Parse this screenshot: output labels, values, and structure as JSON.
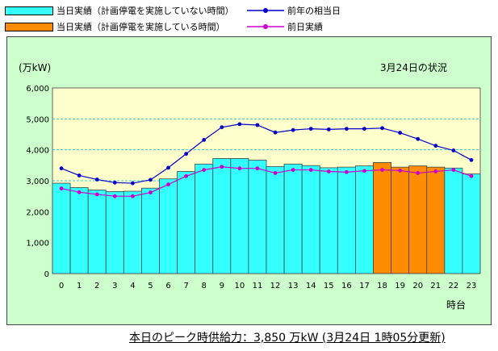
{
  "legend": {
    "today_no_outage": "当日実績（計画停電を実施していない時間）",
    "today_outage": "当日実績（計画停電を実施している時間）",
    "last_year": "前年の相当日",
    "previous_day": "前日実績"
  },
  "header": {
    "unit_label": "(万kW)",
    "date_status": "3月24日の状況"
  },
  "footer": {
    "peak_text": "本日のピーク時供給力：3,850 万kW (3月24日 1時05分更新)"
  },
  "colors": {
    "bar_no_outage": "#33ffff",
    "bar_outage": "#ff8c00",
    "plot_bg": "#ffffcc",
    "panel_bg": "#ccffcc",
    "last_year_line": "#0000cc",
    "previous_day_line": "#cc00cc",
    "grid_line": "#33cccc"
  },
  "chart_data": {
    "type": "bar",
    "xlabel": "時台",
    "ylabel": "(万kW)",
    "ylim": [
      0,
      6000
    ],
    "yticks": [
      "0",
      "1,000",
      "2,000",
      "3,000",
      "4,000",
      "5,000",
      "6,000"
    ],
    "categories": [
      "0",
      "1",
      "2",
      "3",
      "4",
      "5",
      "6",
      "7",
      "8",
      "9",
      "10",
      "11",
      "12",
      "13",
      "14",
      "15",
      "16",
      "17",
      "18",
      "19",
      "20",
      "21",
      "22",
      "23"
    ],
    "series": [
      {
        "name": "当日実績（計画停電を実施していない時間）",
        "kind": "bar",
        "values": [
          2920,
          2780,
          2700,
          2650,
          2660,
          2760,
          3060,
          3300,
          3540,
          3720,
          3720,
          3670,
          3460,
          3540,
          3490,
          3420,
          3440,
          3480,
          3420,
          3410,
          3460,
          3410,
          3410,
          3220
        ],
        "outage_hours": [
          18,
          19,
          20,
          21
        ],
        "outage_values": [
          3590,
          3440,
          3480,
          3440
        ]
      },
      {
        "name": "前年の相当日",
        "kind": "line",
        "values": [
          3400,
          3170,
          3040,
          2940,
          2920,
          3030,
          3420,
          3870,
          4320,
          4730,
          4830,
          4800,
          4560,
          4640,
          4680,
          4660,
          4680,
          4680,
          4700,
          4550,
          4350,
          4130,
          3980,
          3670
        ]
      },
      {
        "name": "前日実績",
        "kind": "line",
        "values": [
          2750,
          2630,
          2560,
          2500,
          2500,
          2620,
          2880,
          3150,
          3350,
          3450,
          3400,
          3400,
          3250,
          3350,
          3350,
          3300,
          3280,
          3320,
          3350,
          3330,
          3250,
          3300,
          3350,
          3150
        ]
      }
    ]
  }
}
